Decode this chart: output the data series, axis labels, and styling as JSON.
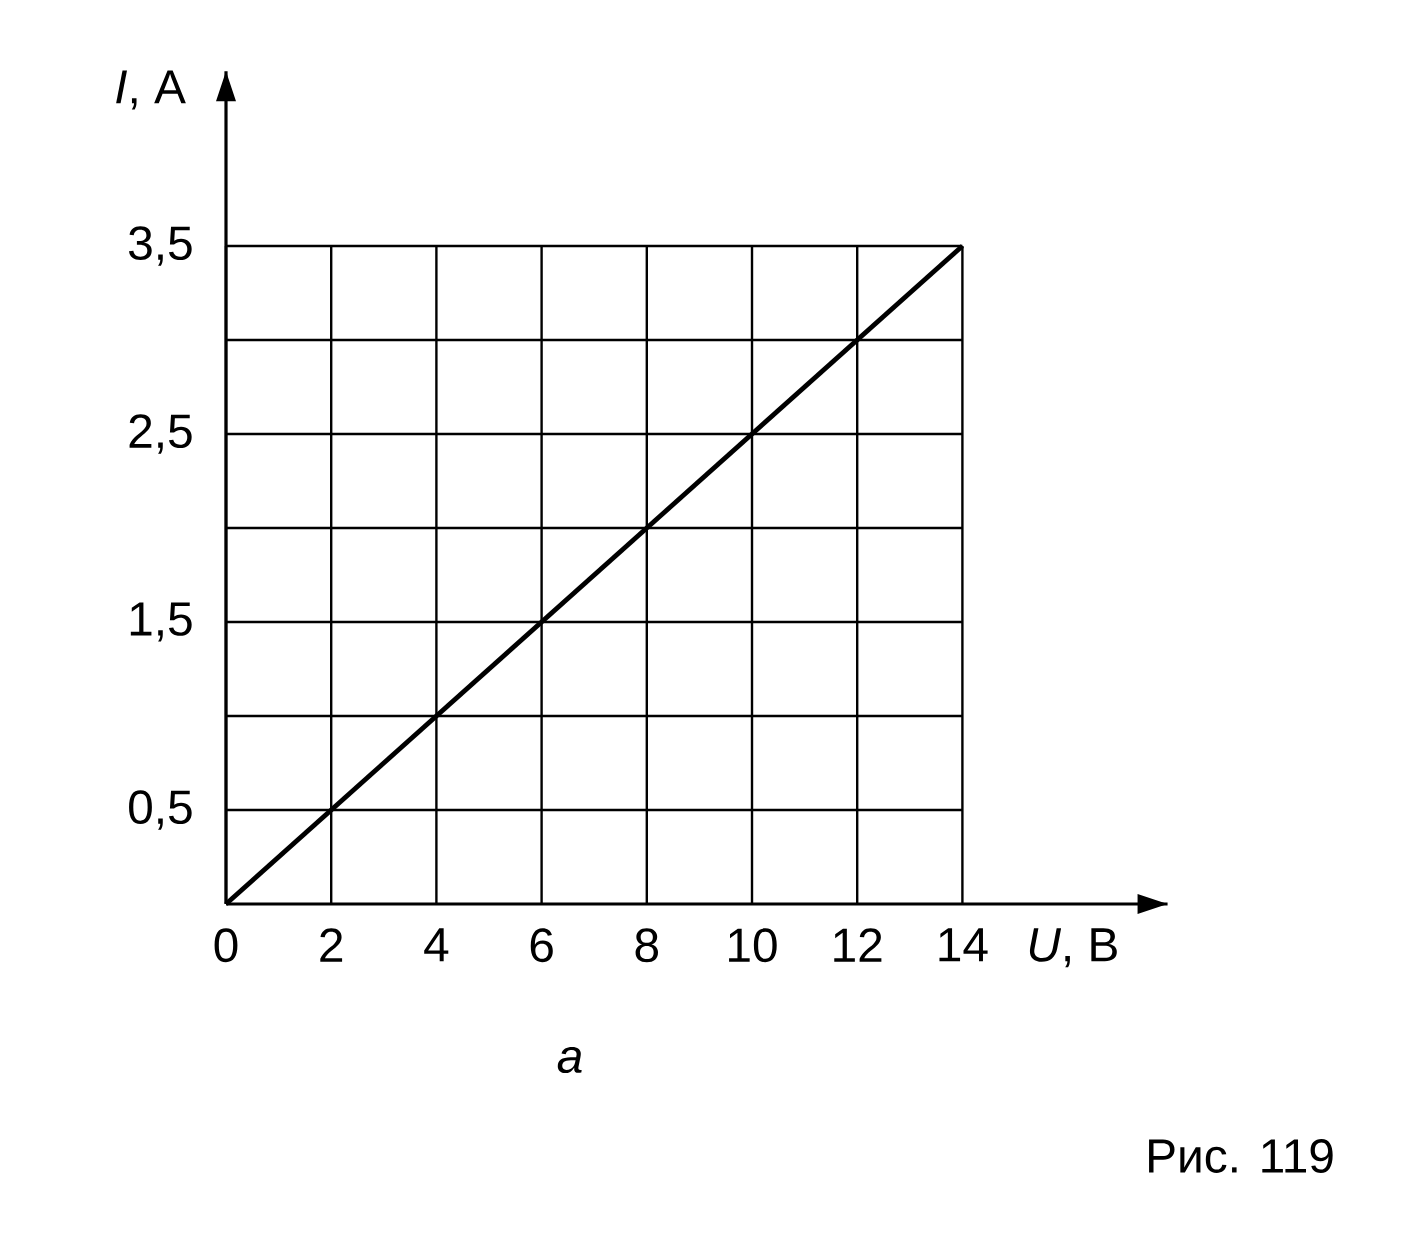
{
  "chart_data": {
    "type": "line",
    "xlabel": "*U*, В",
    "ylabel": "*I*, А",
    "x": [
      0,
      14
    ],
    "series": [
      {
        "color": "#000000",
        "values": [
          0,
          3.5
        ]
      }
    ],
    "xlim": [
      0,
      17.9
    ],
    "ylim": [
      0,
      4.43
    ],
    "xticks": [
      0,
      2,
      4,
      6,
      8,
      10,
      12,
      14
    ],
    "yticks": [
      {
        "value": 0.5,
        "label": "0,5"
      },
      {
        "value": 1,
        "label": null
      },
      {
        "value": 1.5,
        "label": "1,5"
      },
      {
        "value": 2,
        "label": null
      },
      {
        "value": 2.5,
        "label": "2,5"
      },
      {
        "value": 3,
        "label": null
      },
      {
        "value": 3.5,
        "label": "3,5"
      }
    ],
    "grid": true,
    "marker": "none",
    "line_style": "solid",
    "annotations": [
      "a",
      "Рис. 119"
    ]
  }
}
